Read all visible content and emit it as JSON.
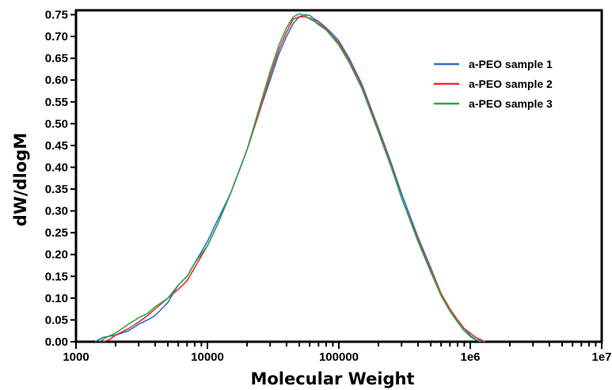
{
  "chart_data": {
    "type": "line",
    "title": "",
    "xlabel": "Molecular Weight",
    "ylabel": "dW/dlogM",
    "xscale": "log",
    "xlim": [
      1000,
      10000000
    ],
    "ylim": [
      0,
      0.76
    ],
    "grid": false,
    "legend_position": "top-right",
    "x_tick_labels": [
      "1000",
      "10000",
      "100000",
      "1e6",
      "1e7"
    ],
    "x_tick_values": [
      1000,
      10000,
      100000,
      1000000,
      10000000
    ],
    "y_tick_labels": [
      "0.00",
      "0.05",
      "0.10",
      "0.15",
      "0.20",
      "0.25",
      "0.30",
      "0.35",
      "0.40",
      "0.45",
      "0.50",
      "0.55",
      "0.60",
      "0.65",
      "0.70",
      "0.75"
    ],
    "y_tick_values": [
      0,
      0.05,
      0.1,
      0.15,
      0.2,
      0.25,
      0.3,
      0.35,
      0.4,
      0.45,
      0.5,
      0.55,
      0.6,
      0.65,
      0.7,
      0.75
    ],
    "series": [
      {
        "name": "a-PEO sample 1",
        "color": "#2c6fd1",
        "x": [
          1400,
          1600,
          2000,
          2500,
          3000,
          3500,
          4000,
          5000,
          6000,
          7000,
          8000,
          10000,
          12000,
          15000,
          20000,
          25000,
          30000,
          35000,
          40000,
          45000,
          50000,
          55000,
          60000,
          65000,
          70000,
          80000,
          90000,
          100000,
          120000,
          150000,
          200000,
          250000,
          300000,
          400000,
          500000,
          600000,
          700000,
          800000,
          900000,
          1000000,
          1100000,
          1300000
        ],
        "y": [
          0.0,
          0.01,
          0.015,
          0.025,
          0.04,
          0.05,
          0.06,
          0.09,
          0.13,
          0.15,
          0.18,
          0.23,
          0.28,
          0.34,
          0.44,
          0.53,
          0.6,
          0.66,
          0.7,
          0.73,
          0.745,
          0.75,
          0.748,
          0.74,
          0.735,
          0.72,
          0.705,
          0.69,
          0.65,
          0.59,
          0.49,
          0.41,
          0.34,
          0.24,
          0.17,
          0.11,
          0.075,
          0.05,
          0.03,
          0.015,
          0.005,
          0.0
        ]
      },
      {
        "name": "a-PEO sample 2",
        "color": "#e8302b",
        "x": [
          1600,
          1800,
          2000,
          2500,
          3000,
          3500,
          4000,
          5000,
          6000,
          7000,
          8000,
          10000,
          12000,
          15000,
          20000,
          25000,
          30000,
          35000,
          40000,
          45000,
          50000,
          55000,
          60000,
          65000,
          70000,
          80000,
          90000,
          100000,
          120000,
          150000,
          200000,
          250000,
          300000,
          400000,
          500000,
          600000,
          700000,
          800000,
          900000,
          1000000,
          1100000,
          1300000
        ],
        "y": [
          0.0,
          0.005,
          0.015,
          0.03,
          0.045,
          0.06,
          0.075,
          0.1,
          0.12,
          0.14,
          0.17,
          0.22,
          0.27,
          0.34,
          0.44,
          0.53,
          0.61,
          0.67,
          0.71,
          0.74,
          0.745,
          0.745,
          0.742,
          0.737,
          0.73,
          0.718,
          0.7,
          0.685,
          0.645,
          0.585,
          0.485,
          0.405,
          0.33,
          0.235,
          0.165,
          0.11,
          0.075,
          0.05,
          0.03,
          0.02,
          0.01,
          0.0
        ]
      },
      {
        "name": "a-PEO sample 3",
        "color": "#2aa84a",
        "x": [
          1500,
          1700,
          2000,
          2500,
          3000,
          3500,
          4000,
          5000,
          6000,
          7000,
          8000,
          10000,
          12000,
          15000,
          20000,
          25000,
          30000,
          35000,
          40000,
          45000,
          50000,
          55000,
          60000,
          65000,
          70000,
          80000,
          90000,
          100000,
          120000,
          150000,
          200000,
          250000,
          300000,
          400000,
          500000,
          600000,
          700000,
          800000,
          900000,
          1000000,
          1100000,
          1200000
        ],
        "y": [
          0.0,
          0.01,
          0.02,
          0.04,
          0.055,
          0.065,
          0.08,
          0.1,
          0.13,
          0.15,
          0.18,
          0.22,
          0.27,
          0.34,
          0.44,
          0.54,
          0.62,
          0.68,
          0.72,
          0.745,
          0.752,
          0.748,
          0.74,
          0.735,
          0.727,
          0.715,
          0.697,
          0.68,
          0.64,
          0.58,
          0.48,
          0.4,
          0.33,
          0.23,
          0.16,
          0.105,
          0.07,
          0.045,
          0.025,
          0.012,
          0.004,
          0.0
        ]
      }
    ]
  }
}
